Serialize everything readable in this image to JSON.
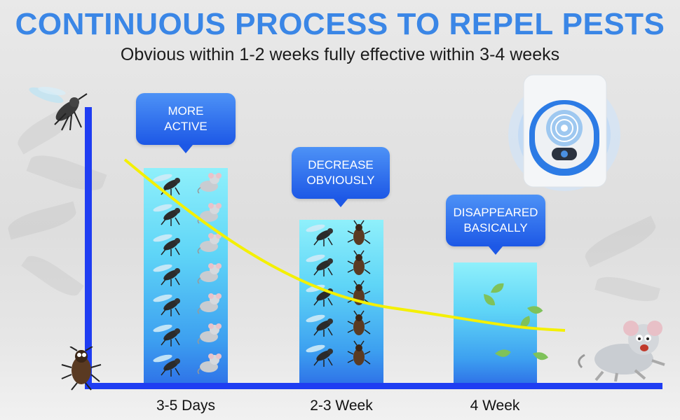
{
  "header": {
    "title": "CONTINUOUS PROCESS TO REPEL PESTS",
    "subtitle": "Obvious within 1-2 weeks fully effective within 3-4 weeks"
  },
  "colors": {
    "title": "#3a86e6",
    "axis": "#1f3df2",
    "bubble": "#2f6ff0",
    "curve": "#f4f000",
    "bar_top": "#8ff0fb",
    "bar_bottom": "#2f74e8"
  },
  "chart_data": {
    "type": "bar",
    "categories": [
      "3-5 Days",
      "2-3 Week",
      "4 Week"
    ],
    "values": [
      100,
      76,
      56
    ],
    "annotations": [
      "MORE\nACTIVE",
      "DECREASE\nOBVIOUSLY",
      "DISAPPEARED\nBASICALLY"
    ],
    "trend_line": {
      "type": "decreasing-curve",
      "color": "#f4f000"
    },
    "ylim": [
      0,
      100
    ],
    "grid": false,
    "icons": [
      "mosquito-icon",
      "cockroach-icon",
      "mouse-icon",
      "leaf-icon",
      "ultrasonic-repeller-device-icon"
    ]
  }
}
